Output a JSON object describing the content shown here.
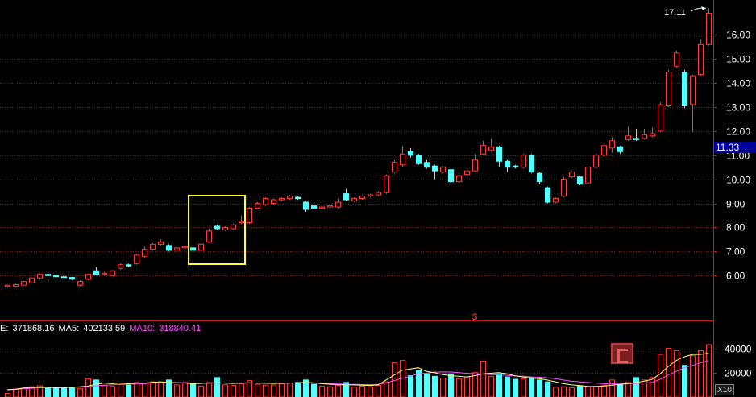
{
  "chart_data": {
    "type": "candlestick",
    "price_axis": {
      "ticks": [
        "16.00",
        "15.00",
        "14.00",
        "13.00",
        "12.00",
        "11.00",
        "10.00",
        "9.00",
        "8.00",
        "7.00",
        "6.00"
      ],
      "range": [
        4.2,
        17.25
      ],
      "current_price_label": "11.33",
      "max_marker_label": "17.11",
      "max_marker_value": 17.11
    },
    "volume_axis": {
      "ticks": [
        "40000",
        "20000"
      ],
      "unit_label": "X10",
      "range": [
        0,
        47000
      ]
    },
    "indicator_line": {
      "vol_label": "E:",
      "vol_value": "371868.16",
      "ma5_label": "MA5:",
      "ma5_value": "402133.59",
      "ma10_label": "MA10:",
      "ma10_value": "318840.41"
    },
    "candles": [
      [
        5.55,
        5.6,
        5.5,
        5.62
      ],
      [
        5.55,
        5.62,
        5.52,
        5.65
      ],
      [
        5.6,
        5.75,
        5.58,
        5.78
      ],
      [
        5.7,
        5.9,
        5.68,
        5.92
      ],
      [
        5.9,
        6.05,
        5.85,
        6.1
      ],
      [
        6.05,
        6.0,
        5.92,
        6.1
      ],
      [
        6.0,
        5.95,
        5.9,
        6.05
      ],
      [
        5.95,
        5.92,
        5.88,
        6.0
      ],
      [
        5.92,
        5.85,
        5.8,
        5.95
      ],
      [
        5.6,
        5.75,
        5.55,
        5.8
      ],
      [
        5.85,
        6.05,
        5.8,
        6.08
      ],
      [
        6.2,
        6.05,
        6.0,
        6.35
      ],
      [
        6.05,
        6.1,
        6.0,
        6.15
      ],
      [
        6.0,
        6.2,
        5.98,
        6.22
      ],
      [
        6.3,
        6.45,
        6.25,
        6.5
      ],
      [
        6.45,
        6.4,
        6.35,
        6.5
      ],
      [
        6.5,
        6.85,
        6.45,
        6.9
      ],
      [
        6.8,
        7.1,
        6.75,
        7.2
      ],
      [
        7.1,
        7.3,
        7.05,
        7.35
      ],
      [
        7.3,
        7.4,
        7.25,
        7.5
      ],
      [
        7.25,
        7.05,
        7.0,
        7.3
      ],
      [
        7.05,
        7.15,
        7.0,
        7.18
      ],
      [
        7.15,
        7.2,
        7.1,
        7.25
      ],
      [
        7.15,
        7.05,
        7.0,
        7.2
      ],
      [
        7.05,
        7.3,
        7.0,
        7.35
      ],
      [
        7.4,
        7.85,
        7.35,
        7.95
      ],
      [
        8.05,
        7.95,
        7.9,
        8.1
      ],
      [
        7.9,
        8.0,
        7.85,
        8.05
      ],
      [
        7.95,
        8.1,
        7.9,
        8.15
      ],
      [
        8.2,
        8.25,
        8.15,
        8.5
      ],
      [
        8.2,
        8.8,
        8.15,
        8.85
      ],
      [
        8.8,
        9.0,
        8.75,
        9.05
      ],
      [
        8.95,
        9.2,
        8.9,
        9.25
      ],
      [
        9.0,
        9.15,
        8.95,
        9.2
      ],
      [
        9.15,
        9.2,
        9.1,
        9.25
      ],
      [
        9.2,
        9.3,
        9.15,
        9.35
      ],
      [
        9.25,
        9.2,
        9.15,
        9.3
      ],
      [
        9.05,
        8.75,
        8.65,
        9.1
      ],
      [
        8.9,
        8.8,
        8.7,
        8.95
      ],
      [
        8.8,
        8.85,
        8.75,
        8.9
      ],
      [
        8.85,
        8.9,
        8.8,
        8.95
      ],
      [
        8.85,
        9.05,
        8.8,
        9.2
      ],
      [
        9.4,
        9.15,
        9.1,
        9.6
      ],
      [
        9.1,
        9.2,
        9.05,
        9.25
      ],
      [
        9.2,
        9.3,
        9.15,
        9.35
      ],
      [
        9.3,
        9.35,
        9.25,
        9.4
      ],
      [
        9.35,
        9.45,
        9.3,
        9.5
      ],
      [
        9.45,
        10.15,
        9.4,
        10.2
      ],
      [
        10.3,
        10.7,
        10.25,
        10.8
      ],
      [
        10.6,
        11.05,
        10.5,
        11.4
      ],
      [
        11.15,
        11.0,
        10.9,
        11.3
      ],
      [
        11.0,
        10.65,
        10.6,
        11.05
      ],
      [
        10.7,
        10.5,
        10.45,
        10.8
      ],
      [
        10.55,
        10.35,
        10.0,
        10.6
      ],
      [
        10.3,
        10.5,
        10.25,
        10.55
      ],
      [
        10.4,
        9.9,
        9.85,
        10.45
      ],
      [
        9.9,
        10.15,
        9.85,
        10.25
      ],
      [
        10.2,
        10.35,
        10.15,
        10.45
      ],
      [
        10.35,
        10.8,
        10.3,
        11.05
      ],
      [
        11.05,
        11.4,
        11.0,
        11.6
      ],
      [
        11.2,
        11.35,
        11.15,
        11.7
      ],
      [
        11.35,
        10.75,
        10.5,
        11.4
      ],
      [
        10.75,
        10.5,
        10.3,
        10.8
      ],
      [
        10.55,
        10.5,
        10.45,
        10.6
      ],
      [
        10.5,
        11.0,
        10.45,
        11.05
      ],
      [
        11.0,
        10.3,
        10.25,
        11.05
      ],
      [
        10.25,
        9.9,
        9.8,
        10.3
      ],
      [
        9.65,
        9.05,
        9.0,
        9.7
      ],
      [
        9.05,
        9.2,
        9.0,
        9.25
      ],
      [
        9.3,
        10.0,
        9.25,
        10.1
      ],
      [
        10.1,
        10.3,
        10.05,
        10.35
      ],
      [
        10.1,
        9.8,
        9.75,
        10.15
      ],
      [
        9.85,
        10.5,
        9.8,
        10.55
      ],
      [
        10.5,
        11.0,
        10.45,
        11.05
      ],
      [
        11.0,
        11.4,
        10.95,
        11.5
      ],
      [
        11.3,
        11.6,
        11.1,
        11.75
      ],
      [
        11.35,
        11.15,
        11.05,
        11.4
      ],
      [
        11.65,
        11.8,
        11.6,
        12.2
      ],
      [
        11.7,
        11.65,
        11.6,
        12.1
      ],
      [
        11.7,
        11.85,
        11.65,
        12.1
      ],
      [
        11.8,
        11.9,
        11.75,
        12.15
      ],
      [
        12.0,
        13.1,
        11.95,
        13.2
      ],
      [
        13.05,
        14.45,
        13.0,
        14.55
      ],
      [
        14.7,
        15.25,
        14.65,
        15.35
      ],
      [
        14.45,
        13.05,
        12.95,
        14.55
      ],
      [
        13.1,
        14.3,
        11.95,
        14.35
      ],
      [
        14.35,
        15.6,
        14.3,
        15.8
      ],
      [
        15.6,
        16.9,
        15.55,
        17.11
      ]
    ],
    "volumes": [
      3000,
      6500,
      7200,
      8500,
      9200,
      8000,
      7000,
      7500,
      8200,
      6800,
      15000,
      14000,
      9500,
      8800,
      10500,
      9800,
      12000,
      11000,
      12500,
      11500,
      14000,
      10000,
      12000,
      11000,
      9000,
      12000,
      16000,
      10000,
      9500,
      11000,
      13500,
      10500,
      9800,
      10000,
      11000,
      11500,
      12000,
      14000,
      10500,
      9000,
      8500,
      9500,
      12000,
      8000,
      9000,
      8500,
      9500,
      12500,
      28000,
      30000,
      17500,
      22000,
      19000,
      17000,
      15500,
      19000,
      15000,
      16500,
      20000,
      29500,
      17000,
      19000,
      16500,
      14500,
      15000,
      16000,
      14000,
      12500,
      8000,
      8500,
      7500,
      9000,
      8500,
      8800,
      9500,
      14000,
      10000,
      12000,
      16000,
      14000,
      16000,
      35000,
      40000,
      38000,
      26000,
      34000,
      38000,
      43000
    ],
    "volume_ma5": [
      6000,
      6500,
      7500,
      7800,
      8200,
      8000,
      7600,
      7800,
      8000,
      8400,
      9000,
      10500,
      11500,
      11000,
      11500,
      11000,
      11500,
      11500,
      12000,
      12500,
      12000,
      11800,
      11500,
      11000,
      11200,
      11500,
      11800,
      11500,
      11200,
      11500,
      11800,
      11500,
      11300,
      11200,
      11300,
      11500,
      11800,
      12000,
      11800,
      11000,
      10500,
      10200,
      10000,
      10000,
      9800,
      9500,
      10000,
      14000,
      18000,
      22000,
      23000,
      24000,
      21000,
      20000,
      18500,
      17500,
      17000,
      16500,
      17500,
      19000,
      19500,
      20000,
      19000,
      17500,
      16500,
      15500,
      15000,
      14000,
      12500,
      11000,
      10000,
      9500,
      8800,
      8700,
      9000,
      9800,
      10300,
      11000,
      12000,
      13000,
      14500,
      19000,
      25000,
      30000,
      33000,
      35000,
      35000,
      36000
    ],
    "volume_ma10": [
      6000,
      6200,
      6800,
      7200,
      7600,
      7800,
      7800,
      7900,
      8000,
      8100,
      8500,
      9200,
      9800,
      10000,
      10300,
      10500,
      10800,
      11000,
      11500,
      11800,
      11900,
      11900,
      11800,
      11600,
      11500,
      11400,
      11500,
      11500,
      11300,
      11300,
      11500,
      11500,
      11400,
      11300,
      11300,
      11400,
      11500,
      11600,
      11500,
      11300,
      11000,
      10800,
      10500,
      10400,
      10300,
      10200,
      10400,
      11500,
      13500,
      15500,
      17000,
      19000,
      19500,
      20500,
      20500,
      20500,
      20000,
      19500,
      19000,
      18800,
      18500,
      18200,
      17800,
      17200,
      17000,
      16500,
      16200,
      15800,
      15000,
      14000,
      13000,
      12500,
      12000,
      11500,
      11000,
      10800,
      10800,
      11000,
      11200,
      11500,
      12000,
      14500,
      18000,
      21000,
      24000,
      26000,
      28000,
      30000
    ],
    "colors": {
      "up": "#ff3c3c",
      "down": "#54ffff",
      "grid": "#8a1a1a",
      "axis": "#c21e1e",
      "ma5": "#ffff80",
      "ma10": "#ff50ff",
      "text": "#ffffff",
      "label_bg": "#000099",
      "highlight": "#ffff33"
    },
    "annotations": {
      "highlight_box_from": 23,
      "highlight_box_to": 29,
      "marker_symbol": "$",
      "marker_index": 58
    }
  }
}
